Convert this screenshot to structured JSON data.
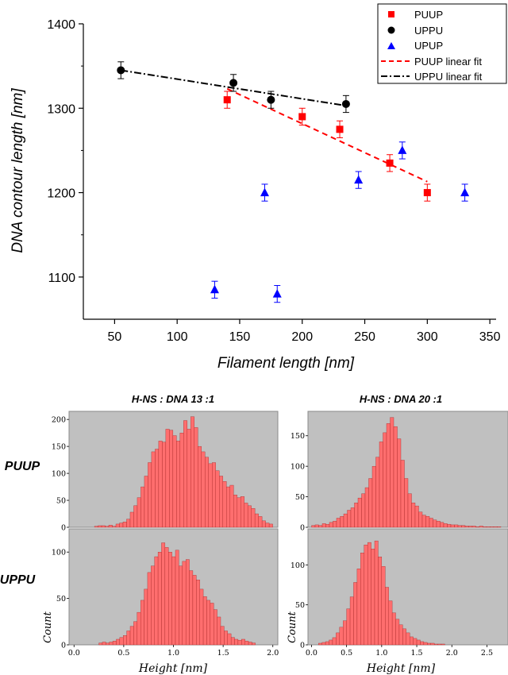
{
  "chart_data": [
    {
      "type": "scatter",
      "xlabel": "Filament length [nm]",
      "ylabel": "DNA contour length [nm]",
      "xlim": [
        25,
        355
      ],
      "ylim": [
        1050,
        1400
      ],
      "xticks": [
        50,
        100,
        150,
        200,
        250,
        300,
        350
      ],
      "yticks": [
        1100,
        1200,
        1300,
        1400
      ],
      "legend_position": "top-right",
      "series": [
        {
          "name": "PUUP",
          "marker": "square",
          "color": "#ff0000",
          "points": [
            [
              140,
              1310
            ],
            [
              200,
              1290
            ],
            [
              230,
              1275
            ],
            [
              270,
              1235
            ],
            [
              300,
              1200
            ]
          ],
          "errors": [
            10,
            10,
            10,
            10,
            10
          ]
        },
        {
          "name": "UPPU",
          "marker": "circle",
          "color": "#000000",
          "points": [
            [
              55,
              1345
            ],
            [
              145,
              1330
            ],
            [
              175,
              1310
            ],
            [
              235,
              1305
            ]
          ],
          "errors": [
            10,
            10,
            10,
            10
          ]
        },
        {
          "name": "UPUP",
          "marker": "triangle",
          "color": "#0000ff",
          "points": [
            [
              130,
              1085
            ],
            [
              170,
              1200
            ],
            [
              180,
              1080
            ],
            [
              245,
              1215
            ],
            [
              280,
              1250
            ],
            [
              330,
              1200
            ]
          ],
          "errors": [
            10,
            10,
            10,
            10,
            10,
            10
          ]
        }
      ],
      "fits": [
        {
          "name": "PUUP linear fit",
          "style": "dashed",
          "color": "#ff0000",
          "x": [
            140,
            300
          ],
          "y": [
            1323,
            1213
          ]
        },
        {
          "name": "UPPU linear fit",
          "style": "dash-dot",
          "color": "#000000",
          "x": [
            55,
            235
          ],
          "y": [
            1345,
            1303
          ]
        }
      ]
    },
    {
      "type": "bar",
      "title": "H-NS : DNA 13 :1",
      "row": "PUUP",
      "xlim": [
        0,
        2.05
      ],
      "ylim": [
        0,
        215
      ],
      "xticks": [],
      "yticks": [
        0,
        50,
        100,
        150,
        200
      ],
      "bin_start": 0.25,
      "bin_width": 0.035,
      "values": [
        2,
        3,
        3,
        2,
        4,
        2,
        6,
        8,
        10,
        15,
        28,
        40,
        55,
        75,
        95,
        120,
        140,
        145,
        160,
        158,
        182,
        180,
        170,
        160,
        175,
        198,
        182,
        205,
        185,
        150,
        140,
        130,
        118,
        120,
        105,
        95,
        85,
        75,
        78,
        60,
        55,
        57,
        45,
        40,
        35,
        25,
        20,
        12,
        8,
        6
      ]
    },
    {
      "type": "bar",
      "title": "H-NS : DNA 20 :1",
      "row": "PUUP",
      "xlim": [
        0,
        2.8
      ],
      "ylim": [
        0,
        190
      ],
      "xticks": [],
      "yticks": [
        0,
        50,
        100,
        150
      ],
      "bin_start": 0.05,
      "bin_width": 0.05,
      "values": [
        3,
        4,
        3,
        6,
        5,
        8,
        10,
        15,
        18,
        22,
        28,
        32,
        40,
        48,
        55,
        65,
        80,
        100,
        115,
        140,
        155,
        170,
        180,
        165,
        145,
        110,
        80,
        55,
        40,
        35,
        25,
        20,
        18,
        15,
        12,
        10,
        8,
        6,
        5,
        4,
        4,
        3,
        3,
        2,
        2,
        2,
        1,
        2,
        1,
        1,
        1,
        1,
        1
      ]
    },
    {
      "type": "bar",
      "row": "UPPU",
      "xlabel": "Height [nm]",
      "ylabel": "Count",
      "xlim": [
        -0.05,
        2.05
      ],
      "ylim": [
        0,
        125
      ],
      "xticks": [
        0.0,
        0.5,
        1.0,
        1.5,
        2.0
      ],
      "yticks": [
        0,
        50,
        100
      ],
      "bin_start": 0.25,
      "bin_width": 0.035,
      "values": [
        2,
        3,
        2,
        3,
        4,
        6,
        8,
        10,
        15,
        20,
        25,
        35,
        48,
        60,
        78,
        85,
        95,
        100,
        110,
        105,
        100,
        95,
        102,
        85,
        90,
        92,
        80,
        75,
        70,
        60,
        52,
        48,
        45,
        38,
        30,
        20,
        15,
        12,
        8,
        6,
        5,
        6,
        4,
        3,
        2
      ]
    },
    {
      "type": "bar",
      "row": "UPPU",
      "xlabel": "Height [nm]",
      "ylabel": "Count",
      "xlim": [
        -0.05,
        2.8
      ],
      "ylim": [
        0,
        145
      ],
      "xticks": [
        0.0,
        0.5,
        1.0,
        1.5,
        2.0,
        2.5
      ],
      "yticks": [
        0,
        50,
        100
      ],
      "bin_start": 0.1,
      "bin_width": 0.05,
      "values": [
        2,
        3,
        4,
        6,
        9,
        15,
        22,
        30,
        45,
        60,
        78,
        95,
        115,
        125,
        128,
        120,
        130,
        110,
        98,
        72,
        55,
        40,
        32,
        25,
        20,
        15,
        10,
        8,
        6,
        4,
        3,
        2,
        2,
        1,
        1,
        1
      ]
    }
  ],
  "row_labels": {
    "top": "PUUP",
    "bottom": "UPPU"
  },
  "colors": {
    "hist_fill": "#ff6e6e",
    "hist_bg": "#c0c0c0",
    "puup": "#ff0000",
    "uppu": "#000000",
    "upup": "#0000ff"
  }
}
